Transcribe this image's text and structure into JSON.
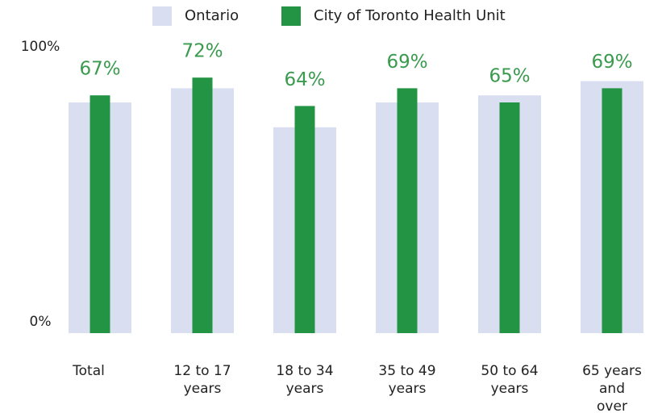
{
  "chart_data": {
    "type": "bar",
    "categories": [
      "Total",
      "12 to 17\nyears",
      "18 to 34\nyears",
      "35 to 49\nyears",
      "50 to 64\nyears",
      "65 years\nand\nover"
    ],
    "series": [
      {
        "name": "Ontario",
        "color": "#d9def0",
        "values": [
          65,
          69,
          58,
          65,
          67,
          71
        ]
      },
      {
        "name": "City of Toronto Health Unit",
        "color": "#239444",
        "values": [
          67,
          72,
          64,
          69,
          65,
          69
        ],
        "value_labels": [
          "67%",
          "72%",
          "64%",
          "69%",
          "65%",
          "69%"
        ]
      }
    ],
    "ylim": [
      0,
      100
    ],
    "yticks": [
      {
        "value": 0,
        "label": "0%"
      },
      {
        "value": 100,
        "label": "100%"
      }
    ],
    "legend": "top",
    "value_label_color": "#3a9a4e"
  }
}
